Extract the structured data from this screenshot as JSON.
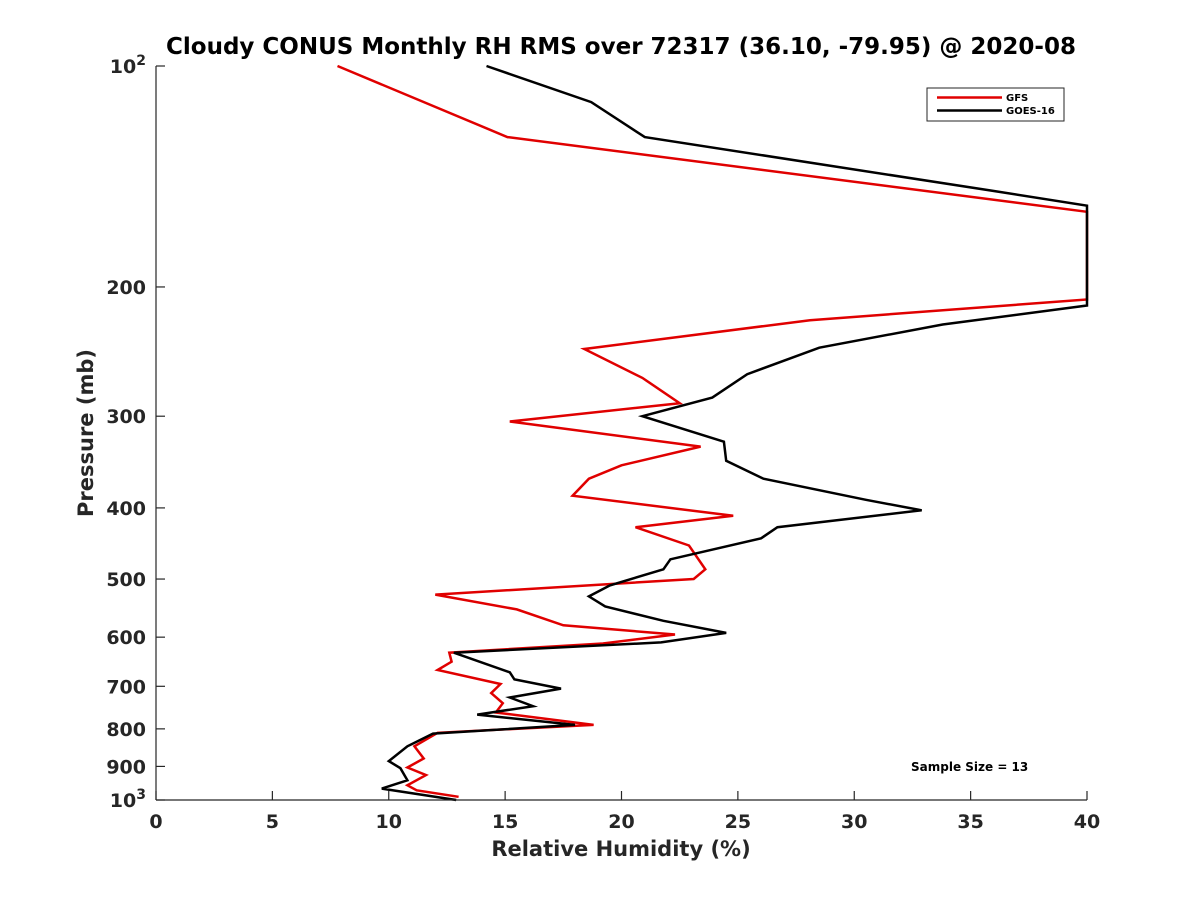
{
  "chart_data": {
    "type": "line",
    "title": "Cloudy CONUS Monthly RH RMS over 72317 (36.10, -79.95) @ 2020-08",
    "xlabel": "Relative Humidity (%)",
    "ylabel": "Pressure (mb)",
    "xlim": [
      0,
      40
    ],
    "ylim": [
      100,
      1000
    ],
    "yscale": "log",
    "y_reversed": true,
    "grid": false,
    "legend_position": "top-right",
    "x_ticks": [
      "0",
      "5",
      "10",
      "15",
      "20",
      "25",
      "30",
      "35",
      "40"
    ],
    "y_ticks": [
      {
        "value": 100,
        "base": "10",
        "exp": "2"
      },
      {
        "value": 200,
        "label": "200"
      },
      {
        "value": 300,
        "label": "300"
      },
      {
        "value": 400,
        "label": "400"
      },
      {
        "value": 500,
        "label": "500"
      },
      {
        "value": 600,
        "label": "600"
      },
      {
        "value": 700,
        "label": "700"
      },
      {
        "value": 800,
        "label": "800"
      },
      {
        "value": 900,
        "label": "900"
      },
      {
        "value": 1000,
        "base": "10",
        "exp": "3"
      }
    ],
    "annotation": "Sample Size = 13",
    "series": [
      {
        "name": "GFS",
        "color": "#e00000",
        "points": [
          {
            "x": 7.8,
            "y": 100
          },
          {
            "x": 15.1,
            "y": 125
          },
          {
            "x": 40,
            "y": 158
          },
          {
            "x": 40,
            "y": 208
          },
          {
            "x": 28.1,
            "y": 222
          },
          {
            "x": 18.4,
            "y": 243
          },
          {
            "x": 20.9,
            "y": 266
          },
          {
            "x": 22.5,
            "y": 288
          },
          {
            "x": 15.2,
            "y": 305
          },
          {
            "x": 23.4,
            "y": 330
          },
          {
            "x": 20.0,
            "y": 350
          },
          {
            "x": 18.6,
            "y": 365
          },
          {
            "x": 17.9,
            "y": 385
          },
          {
            "x": 24.8,
            "y": 410
          },
          {
            "x": 20.6,
            "y": 425
          },
          {
            "x": 22.9,
            "y": 450
          },
          {
            "x": 23.6,
            "y": 485
          },
          {
            "x": 23.1,
            "y": 500
          },
          {
            "x": 12.0,
            "y": 525
          },
          {
            "x": 15.5,
            "y": 550
          },
          {
            "x": 17.5,
            "y": 578
          },
          {
            "x": 22.3,
            "y": 595
          },
          {
            "x": 19.2,
            "y": 612
          },
          {
            "x": 12.6,
            "y": 630
          },
          {
            "x": 12.7,
            "y": 648
          },
          {
            "x": 12.1,
            "y": 665
          },
          {
            "x": 14.8,
            "y": 695
          },
          {
            "x": 14.4,
            "y": 715
          },
          {
            "x": 14.9,
            "y": 738
          },
          {
            "x": 14.6,
            "y": 760
          },
          {
            "x": 18.8,
            "y": 790
          },
          {
            "x": 12.1,
            "y": 810
          },
          {
            "x": 11.1,
            "y": 845
          },
          {
            "x": 11.5,
            "y": 878
          },
          {
            "x": 10.8,
            "y": 903
          },
          {
            "x": 11.6,
            "y": 925
          },
          {
            "x": 10.8,
            "y": 955
          },
          {
            "x": 11.2,
            "y": 970
          },
          {
            "x": 13.0,
            "y": 990
          }
        ]
      },
      {
        "name": "GOES-16",
        "color": "#000000",
        "points": [
          {
            "x": 14.2,
            "y": 100
          },
          {
            "x": 18.7,
            "y": 112
          },
          {
            "x": 21.0,
            "y": 125
          },
          {
            "x": 36.0,
            "y": 148
          },
          {
            "x": 40,
            "y": 155
          },
          {
            "x": 40,
            "y": 212
          },
          {
            "x": 33.8,
            "y": 225
          },
          {
            "x": 28.5,
            "y": 242
          },
          {
            "x": 25.4,
            "y": 263
          },
          {
            "x": 23.9,
            "y": 283
          },
          {
            "x": 20.9,
            "y": 300
          },
          {
            "x": 24.4,
            "y": 325
          },
          {
            "x": 24.5,
            "y": 345
          },
          {
            "x": 26.1,
            "y": 365
          },
          {
            "x": 30.5,
            "y": 390
          },
          {
            "x": 32.9,
            "y": 403
          },
          {
            "x": 26.7,
            "y": 425
          },
          {
            "x": 26.0,
            "y": 440
          },
          {
            "x": 22.1,
            "y": 470
          },
          {
            "x": 21.8,
            "y": 485
          },
          {
            "x": 19.5,
            "y": 510
          },
          {
            "x": 18.6,
            "y": 528
          },
          {
            "x": 19.3,
            "y": 545
          },
          {
            "x": 21.8,
            "y": 570
          },
          {
            "x": 24.5,
            "y": 592
          },
          {
            "x": 21.7,
            "y": 610
          },
          {
            "x": 12.8,
            "y": 630
          },
          {
            "x": 15.2,
            "y": 670
          },
          {
            "x": 15.4,
            "y": 685
          },
          {
            "x": 17.4,
            "y": 705
          },
          {
            "x": 15.2,
            "y": 725
          },
          {
            "x": 16.2,
            "y": 745
          },
          {
            "x": 13.8,
            "y": 765
          },
          {
            "x": 18.0,
            "y": 790
          },
          {
            "x": 11.9,
            "y": 812
          },
          {
            "x": 10.8,
            "y": 845
          },
          {
            "x": 10.0,
            "y": 885
          },
          {
            "x": 10.5,
            "y": 905
          },
          {
            "x": 10.8,
            "y": 940
          },
          {
            "x": 9.7,
            "y": 965
          },
          {
            "x": 12.9,
            "y": 1000
          }
        ]
      }
    ]
  }
}
